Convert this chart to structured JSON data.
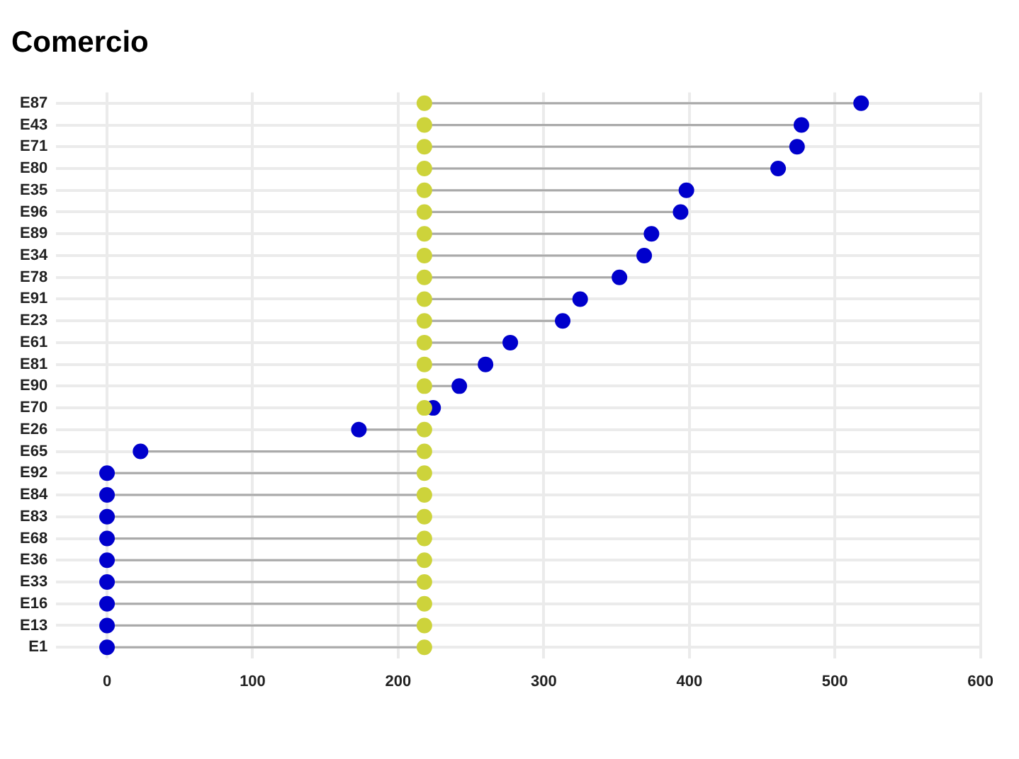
{
  "chart_data": {
    "type": "lollipop",
    "title": "Comercio",
    "orientation": "horizontal",
    "grid": true,
    "legend": false,
    "marker": "circle",
    "categories": [
      "E87",
      "E43",
      "E71",
      "E80",
      "E35",
      "E96",
      "E89",
      "E34",
      "E78",
      "E91",
      "E23",
      "E61",
      "E81",
      "E90",
      "E70",
      "E26",
      "E65",
      "E92",
      "E84",
      "E83",
      "E68",
      "E36",
      "E33",
      "E16",
      "E13",
      "E1"
    ],
    "xlim": [
      -35,
      600
    ],
    "xticks": [
      0,
      100,
      200,
      300,
      400,
      500,
      600
    ],
    "series": [
      {
        "type": "scatter",
        "color": "#cdd33b",
        "values": [
          218,
          218,
          218,
          218,
          218,
          218,
          218,
          218,
          218,
          218,
          218,
          218,
          218,
          218,
          218,
          218,
          218,
          218,
          218,
          218,
          218,
          218,
          218,
          218,
          218,
          218
        ]
      },
      {
        "type": "lollipop",
        "color": "#0000cc",
        "values": [
          518,
          477,
          474,
          461,
          398,
          394,
          374,
          369,
          352,
          325,
          313,
          277,
          260,
          242,
          224,
          173,
          23,
          0,
          0,
          0,
          0,
          0,
          0,
          0,
          0,
          0
        ]
      }
    ]
  }
}
